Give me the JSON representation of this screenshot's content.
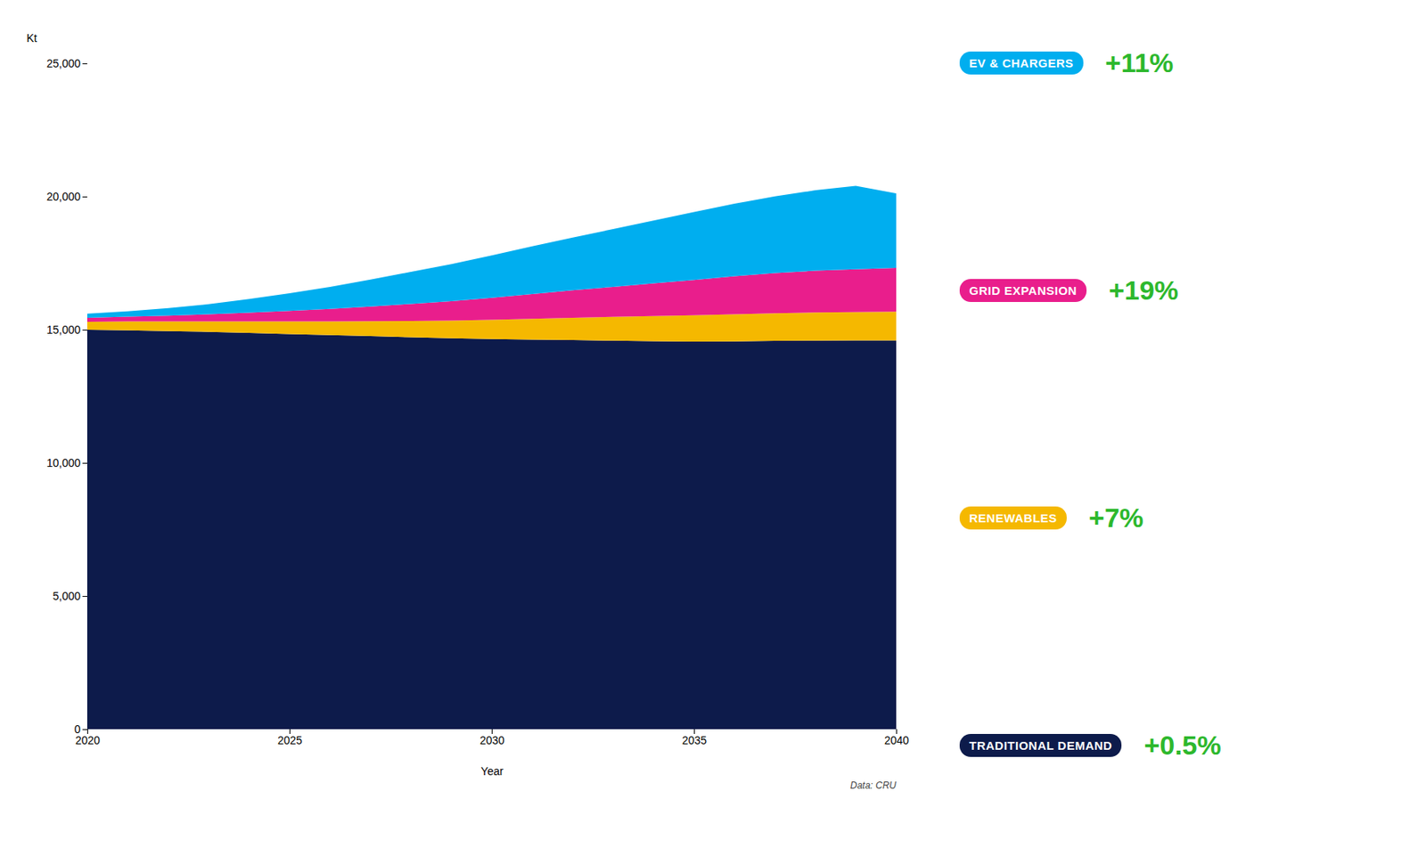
{
  "chart_data": {
    "type": "area",
    "stacked": true,
    "xlabel": "Year",
    "ylabel": "Kt",
    "x": [
      2020,
      2021,
      2022,
      2023,
      2024,
      2025,
      2026,
      2027,
      2028,
      2029,
      2030,
      2031,
      2032,
      2033,
      2034,
      2035,
      2036,
      2037,
      2038,
      2039,
      2040
    ],
    "series": [
      {
        "name": "TRADITIONAL DEMAND",
        "color": "#0d1b4b",
        "values": [
          15000,
          14980,
          14950,
          14920,
          14880,
          14840,
          14800,
          14760,
          14720,
          14680,
          14650,
          14630,
          14610,
          14590,
          14570,
          14550,
          14560,
          14580,
          14590,
          14595,
          14600
        ],
        "annotation": {
          "text": "+0.5%",
          "color": "#2db82d"
        }
      },
      {
        "name": "RENEWABLES",
        "color": "#f5b800",
        "values": [
          300,
          330,
          360,
          390,
          430,
          470,
          510,
          560,
          610,
          660,
          720,
          780,
          840,
          890,
          940,
          990,
          1020,
          1040,
          1055,
          1065,
          1080
        ],
        "annotation": {
          "text": "+7%",
          "color": "#2db82d"
        }
      },
      {
        "name": "GRID EXPANSION",
        "color": "#e91e8c",
        "values": [
          150,
          180,
          220,
          270,
          330,
          400,
          470,
          550,
          640,
          730,
          830,
          930,
          1030,
          1130,
          1230,
          1330,
          1430,
          1510,
          1570,
          1610,
          1640
        ],
        "annotation": {
          "text": "+19%",
          "color": "#2db82d"
        }
      },
      {
        "name": "EV & CHARGERS",
        "color": "#00aeef",
        "values": [
          150,
          200,
          280,
          380,
          510,
          660,
          830,
          1010,
          1200,
          1390,
          1590,
          1790,
          1980,
          2170,
          2360,
          2550,
          2720,
          2880,
          3020,
          3130,
          2800
        ],
        "annotation": {
          "text": "+11%",
          "color": "#2db82d"
        }
      }
    ],
    "xlim": [
      2020,
      2040
    ],
    "xticks": [
      2020,
      2025,
      2030,
      2035,
      2040
    ],
    "ylim": [
      0,
      25000
    ],
    "yticks": [
      0,
      {
        "value": 5000,
        "label": "5,000"
      },
      {
        "value": 10000,
        "label": "10,000"
      },
      {
        "value": 15000,
        "label": "15,000"
      },
      {
        "value": 20000,
        "label": "20,000"
      },
      {
        "value": 25000,
        "label": "25,000"
      }
    ],
    "grid": false,
    "annotations": [
      {
        "text": "Data: CRU"
      }
    ]
  }
}
